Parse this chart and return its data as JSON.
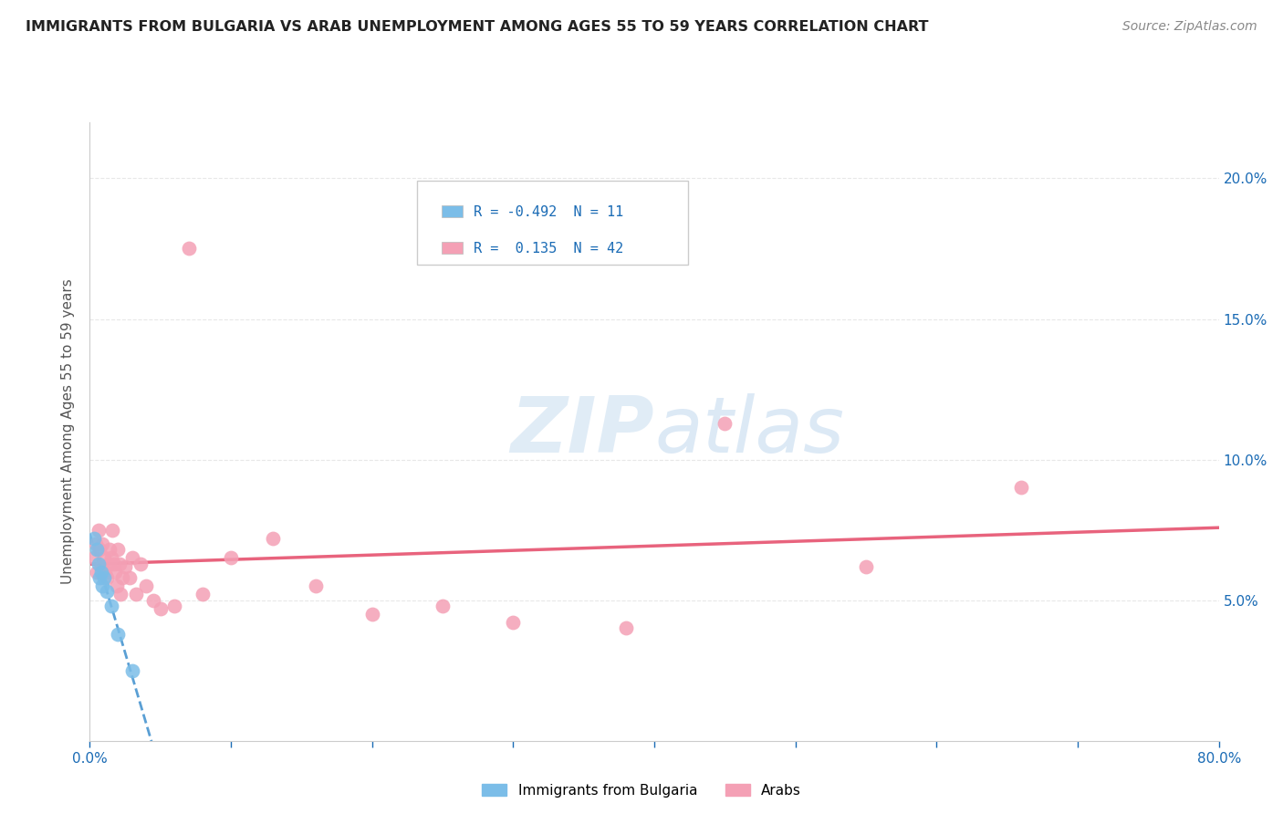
{
  "title": "IMMIGRANTS FROM BULGARIA VS ARAB UNEMPLOYMENT AMONG AGES 55 TO 59 YEARS CORRELATION CHART",
  "source": "Source: ZipAtlas.com",
  "ylabel": "Unemployment Among Ages 55 to 59 years",
  "xlim": [
    0,
    0.8
  ],
  "ylim": [
    0,
    0.22
  ],
  "xtick_positions": [
    0.0,
    0.1,
    0.2,
    0.3,
    0.4,
    0.5,
    0.6,
    0.7,
    0.8
  ],
  "xticklabels": [
    "0.0%",
    "",
    "",
    "",
    "",
    "",
    "",
    "",
    "80.0%"
  ],
  "ytick_positions": [
    0.05,
    0.1,
    0.15,
    0.2
  ],
  "ytick_labels_right": [
    "5.0%",
    "10.0%",
    "15.0%",
    "20.0%"
  ],
  "bulgaria_color": "#7bbde8",
  "arab_color": "#f4a0b5",
  "bulgaria_line_color": "#5a9fd4",
  "arab_line_color": "#e8637d",
  "bulgaria_R": -0.492,
  "bulgaria_N": 11,
  "arab_R": 0.135,
  "arab_N": 42,
  "legend_label_bulgaria": "Immigrants from Bulgaria",
  "legend_label_arab": "Arabs",
  "watermark_zip": "ZIP",
  "watermark_atlas": "atlas",
  "background_color": "#ffffff",
  "grid_color": "#e8e8e8",
  "title_color": "#222222",
  "axis_label_color": "#1a6bb5",
  "tick_color": "#1a6bb5",
  "bulgaria_x": [
    0.003,
    0.005,
    0.006,
    0.007,
    0.008,
    0.009,
    0.01,
    0.012,
    0.015,
    0.02,
    0.03
  ],
  "bulgaria_y": [
    0.072,
    0.068,
    0.063,
    0.058,
    0.06,
    0.055,
    0.058,
    0.053,
    0.048,
    0.038,
    0.025
  ],
  "arab_x": [
    0.003,
    0.004,
    0.005,
    0.006,
    0.007,
    0.008,
    0.009,
    0.01,
    0.011,
    0.012,
    0.013,
    0.014,
    0.015,
    0.016,
    0.017,
    0.018,
    0.019,
    0.02,
    0.021,
    0.022,
    0.023,
    0.025,
    0.028,
    0.03,
    0.033,
    0.036,
    0.04,
    0.045,
    0.05,
    0.06,
    0.07,
    0.08,
    0.1,
    0.13,
    0.16,
    0.2,
    0.25,
    0.3,
    0.38,
    0.45,
    0.55,
    0.66
  ],
  "arab_y": [
    0.065,
    0.07,
    0.06,
    0.075,
    0.068,
    0.062,
    0.07,
    0.065,
    0.06,
    0.058,
    0.063,
    0.068,
    0.065,
    0.075,
    0.063,
    0.06,
    0.055,
    0.068,
    0.063,
    0.052,
    0.058,
    0.062,
    0.058,
    0.065,
    0.052,
    0.063,
    0.055,
    0.05,
    0.047,
    0.048,
    0.175,
    0.052,
    0.065,
    0.072,
    0.055,
    0.045,
    0.048,
    0.042,
    0.04,
    0.113,
    0.062,
    0.09
  ]
}
